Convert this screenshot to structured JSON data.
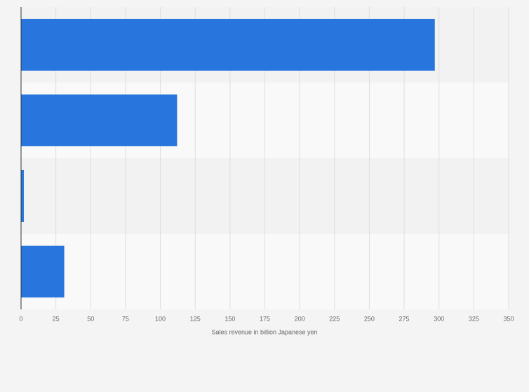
{
  "chart_data": {
    "type": "hbar",
    "categories": [
      null,
      null,
      null,
      null
    ],
    "values": [
      297,
      112,
      2,
      31
    ],
    "color": "#2876dd",
    "xlabel": "Sales revenue in billion Japanese yen",
    "xlim": [
      0,
      350
    ],
    "xticks": [
      0,
      25,
      50,
      75,
      100,
      125,
      150,
      175,
      200,
      225,
      250,
      275,
      300,
      325,
      350
    ],
    "grid": true
  }
}
